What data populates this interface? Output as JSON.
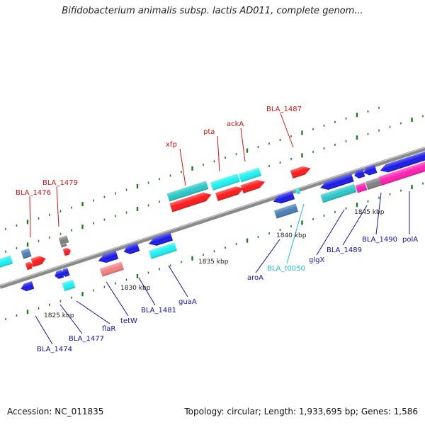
{
  "title": "Bifidobacterium animalis subsp. lactis AD011, complete genom...",
  "footer": {
    "accession": "Accession: NC_011835",
    "summary": "Topology: circular; Length: 1,933,695 bp; Genes: 1,586"
  },
  "colors": {
    "forward_red": "#ff1a1a",
    "cyan": "#1ff0f0",
    "teal": "#2bc7c7",
    "blue": "#1a1ae6",
    "steel_blue": "#4a7fb5",
    "pink": "#ff1fb3",
    "salmon": "#f08080",
    "grey": "#808080",
    "label_red": "#dd1111",
    "label_blue": "#1111aa",
    "label_cyan": "#22bbdd",
    "tick_green": "#1f7a1f",
    "backbone": "#8a8a8a"
  },
  "scale_labels": [
    "1825 kbp",
    "1830 kbp",
    "1835 kbp",
    "1840 kbp",
    "1845 kbp"
  ],
  "top_labels": [
    {
      "text": "BLA_1476",
      "color": "red"
    },
    {
      "text": "BLA_1479",
      "color": "red"
    },
    {
      "text": "xfp",
      "color": "red"
    },
    {
      "text": "pta",
      "color": "red"
    },
    {
      "text": "ackA",
      "color": "red"
    },
    {
      "text": "BLA_1487",
      "color": "red"
    }
  ],
  "bottom_labels": [
    {
      "text": "BLA_1474",
      "color": "blue"
    },
    {
      "text": "BLA_1477",
      "color": "blue"
    },
    {
      "text": "flaR",
      "color": "blue"
    },
    {
      "text": "tetW",
      "color": "blue"
    },
    {
      "text": "BLA_1481",
      "color": "blue"
    },
    {
      "text": "guaA",
      "color": "blue"
    },
    {
      "text": "aroA",
      "color": "blue"
    },
    {
      "text": "BLA_t0050",
      "color": "cyan"
    },
    {
      "text": "glgX",
      "color": "blue"
    },
    {
      "text": "BLA_1489",
      "color": "blue"
    },
    {
      "text": "BLA_1490",
      "color": "blue"
    },
    {
      "text": "polA",
      "color": "blue"
    }
  ]
}
